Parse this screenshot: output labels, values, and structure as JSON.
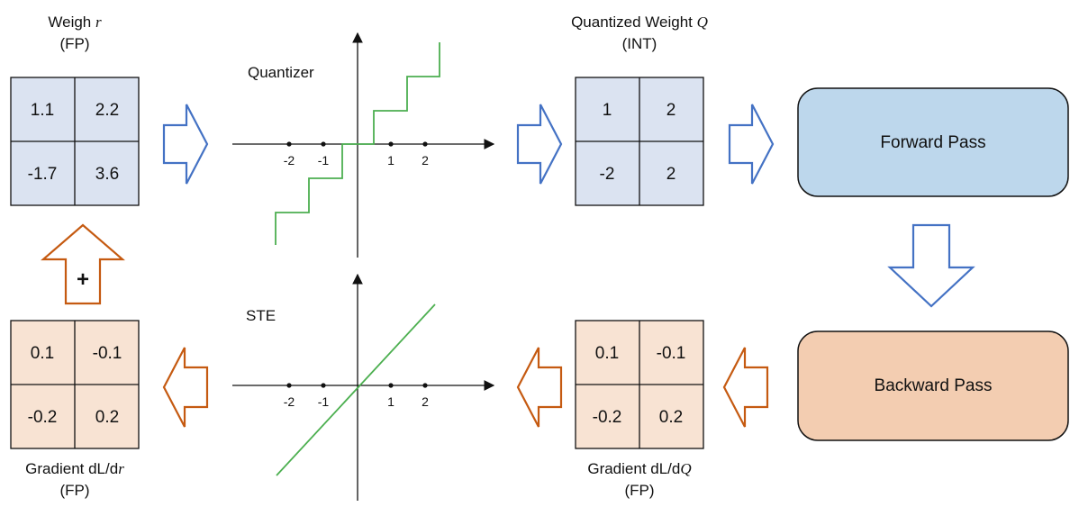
{
  "colors": {
    "fp_fill": "#dbe3f1",
    "grad_fill": "#f8e3d3",
    "forward_fill": "#bdd7ec",
    "backward_fill": "#f3cdb1",
    "blue_arrow": "#4472c4",
    "orange_arrow": "#c55a11",
    "step_line": "#4caf50",
    "border": "#111111"
  },
  "weight_matrix": {
    "title_prefix": "Weigh ",
    "title_var": "r",
    "subtitle": "(FP)",
    "cells": [
      "1.1",
      "2.2",
      "-1.7",
      "3.6"
    ]
  },
  "quantized_matrix": {
    "title_prefix": "Quantized Weight ",
    "title_var": "Q",
    "subtitle": "(INT)",
    "cells": [
      "1",
      "2",
      "-2",
      "2"
    ]
  },
  "grad_q_matrix": {
    "title_prefix": "Gradient dL/d",
    "title_var": "Q",
    "subtitle": "(FP)",
    "cells": [
      "0.1",
      "-0.1",
      "-0.2",
      "0.2"
    ]
  },
  "grad_r_matrix": {
    "title_prefix": "Gradient dL/d",
    "title_var": "r",
    "subtitle": "(FP)",
    "cells": [
      "0.1",
      "-0.1",
      "-0.2",
      "0.2"
    ]
  },
  "quantizer_plot": {
    "label": "Quantizer",
    "ticks": [
      "-2",
      "-1",
      "1",
      "2"
    ]
  },
  "ste_plot": {
    "label": "STE",
    "ticks": [
      "-2",
      "-1",
      "1",
      "2"
    ]
  },
  "forward_box": {
    "label": "Forward Pass"
  },
  "backward_box": {
    "label": "Backward Pass"
  },
  "update_arrow": {
    "symbol": "+"
  },
  "icons": {
    "right_arrow": "hollow-right-arrow-icon",
    "left_arrow": "hollow-left-arrow-icon",
    "up_arrow": "hollow-up-arrow-icon",
    "down_arrow": "hollow-down-arrow-icon"
  }
}
